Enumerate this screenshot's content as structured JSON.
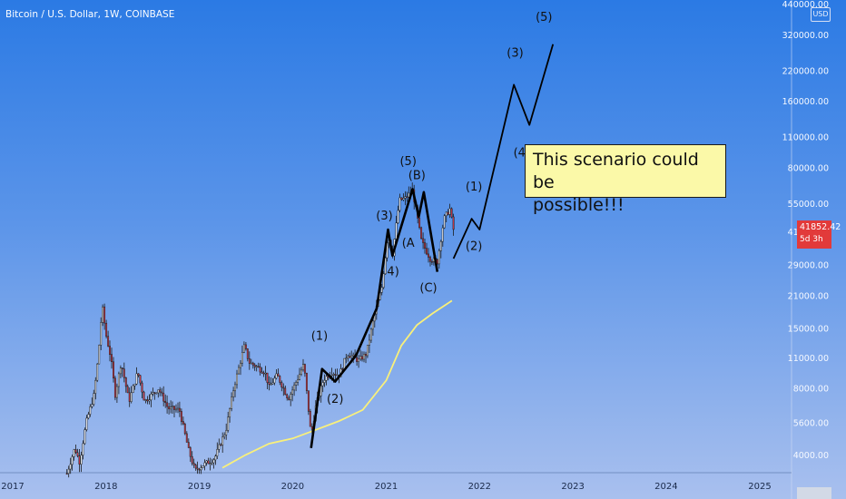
{
  "chart_data": {
    "type": "candlestick",
    "title": "Bitcoin / U.S. Dollar, 1W, COINBASE",
    "currency": "USD",
    "x_axis": {
      "tick_labels": [
        "2017",
        "2018",
        "2019",
        "2020",
        "2021",
        "2022",
        "2023",
        "2024",
        "2025"
      ],
      "range": [
        "2017-01-01",
        "2025-07-01"
      ]
    },
    "y_axis": {
      "scale": "log",
      "position": "right",
      "tick_values": [
        4000,
        5600,
        8000,
        11000,
        15000,
        21000,
        29000,
        41000,
        55000,
        80000,
        110000,
        160000,
        220000,
        320000,
        440000
      ],
      "tick_labels": [
        "4000.00",
        "5600.00",
        "8000.00",
        "11000.00",
        "15000.00",
        "21000.00",
        "29000.00",
        "41000.00",
        "55000.00",
        "80000.00",
        "110000.00",
        "160000.00",
        "220000.00",
        "320000.00",
        "440000.00"
      ],
      "range": [
        3420,
        460000
      ]
    },
    "last_price": {
      "value": "41852.42",
      "time_to_close": "5d 3h"
    },
    "price_path": {
      "name": "BTCUSD weekly (approximate close path)",
      "points": [
        [
          "2017-08-01",
          3300
        ],
        [
          "2017-09-01",
          4300
        ],
        [
          "2017-09-20",
          3700
        ],
        [
          "2017-10-15",
          5600
        ],
        [
          "2017-11-15",
          7500
        ],
        [
          "2017-12-01",
          11000
        ],
        [
          "2017-12-17",
          19000
        ],
        [
          "2018-01-01",
          14000
        ],
        [
          "2018-01-20",
          11000
        ],
        [
          "2018-02-06",
          7500
        ],
        [
          "2018-03-01",
          10500
        ],
        [
          "2018-04-01",
          7000
        ],
        [
          "2018-05-05",
          9500
        ],
        [
          "2018-06-01",
          7000
        ],
        [
          "2018-07-25",
          8000
        ],
        [
          "2018-09-01",
          6500
        ],
        [
          "2018-10-15",
          6400
        ],
        [
          "2018-11-20",
          4200
        ],
        [
          "2018-12-15",
          3400
        ],
        [
          "2019-01-15",
          3600
        ],
        [
          "2019-03-01",
          3850
        ],
        [
          "2019-04-15",
          5200
        ],
        [
          "2019-05-15",
          8000
        ],
        [
          "2019-06-26",
          12500
        ],
        [
          "2019-07-15",
          10500
        ],
        [
          "2019-08-15",
          10000
        ],
        [
          "2019-09-15",
          9500
        ],
        [
          "2019-10-01",
          8100
        ],
        [
          "2019-11-01",
          9200
        ],
        [
          "2019-12-15",
          7200
        ],
        [
          "2020-01-15",
          8600
        ],
        [
          "2020-02-14",
          10300
        ],
        [
          "2020-03-13",
          4900
        ],
        [
          "2020-04-01",
          6700
        ],
        [
          "2020-05-01",
          8800
        ],
        [
          "2020-06-01",
          9500
        ],
        [
          "2020-07-01",
          9200
        ],
        [
          "2020-08-01",
          11500
        ],
        [
          "2020-09-15",
          10700
        ],
        [
          "2020-10-15",
          11500
        ],
        [
          "2020-11-15",
          17000
        ],
        [
          "2020-12-15",
          23000
        ],
        [
          "2021-01-08",
          40000
        ],
        [
          "2021-01-25",
          32000
        ],
        [
          "2021-02-21",
          57000
        ],
        [
          "2021-03-15",
          58000
        ],
        [
          "2021-04-14",
          63000
        ],
        [
          "2021-05-19",
          37000
        ],
        [
          "2021-06-22",
          31000
        ],
        [
          "2021-07-20",
          30000
        ],
        [
          "2021-08-15",
          47000
        ],
        [
          "2021-09-07",
          52000
        ],
        [
          "2021-09-21",
          42000
        ]
      ]
    },
    "moving_average": {
      "color": "#f9f07a",
      "points": [
        [
          "2019-04-01",
          3500
        ],
        [
          "2019-07-01",
          4000
        ],
        [
          "2019-10-01",
          4500
        ],
        [
          "2020-01-01",
          4750
        ],
        [
          "2020-04-01",
          5200
        ],
        [
          "2020-07-01",
          5700
        ],
        [
          "2020-10-01",
          6400
        ],
        [
          "2021-01-01",
          8700
        ],
        [
          "2021-03-01",
          12500
        ],
        [
          "2021-05-01",
          15500
        ],
        [
          "2021-07-01",
          17500
        ],
        [
          "2021-09-15",
          20000
        ]
      ]
    },
    "wave_path": {
      "color": "#000000",
      "historical": [
        [
          "2020-03-13",
          4300
        ],
        [
          "2020-04-25",
          9800
        ],
        [
          "2020-06-15",
          8600
        ],
        [
          "2020-09-05",
          11300
        ],
        [
          "2020-11-25",
          18500
        ],
        [
          "2021-01-08",
          42000
        ],
        [
          "2021-01-25",
          32000
        ],
        [
          "2021-04-14",
          64000
        ],
        [
          "2021-05-08",
          48000
        ],
        [
          "2021-05-28",
          62000
        ],
        [
          "2021-07-20",
          27000
        ]
      ],
      "projection": [
        [
          "2021-09-21",
          31000
        ],
        [
          "2021-12-01",
          47000
        ],
        [
          "2022-01-01",
          42000
        ],
        [
          "2022-05-15",
          190000
        ],
        [
          "2022-07-15",
          125000
        ],
        [
          "2022-10-15",
          290000
        ]
      ]
    },
    "wave_labels": [
      {
        "label": "(1)",
        "date": "2020-04-15",
        "price": 13300
      },
      {
        "label": "(2)",
        "date": "2020-06-15",
        "price": 6900
      },
      {
        "label": "(3)",
        "date": "2020-12-25",
        "price": 46500
      },
      {
        "label": "4)",
        "date": "2021-01-28",
        "price": 26000
      },
      {
        "label": "(5)",
        "date": "2021-03-28",
        "price": 82000
      },
      {
        "label": "(B)",
        "date": "2021-05-01",
        "price": 71000
      },
      {
        "label": "(A",
        "date": "2021-03-28",
        "price": 35000
      },
      {
        "label": "(C)",
        "date": "2021-06-15",
        "price": 22000
      },
      {
        "label": "(1)",
        "date": "2021-12-10",
        "price": 63000
      },
      {
        "label": "(2)",
        "date": "2021-12-10",
        "price": 34000
      },
      {
        "label": "(3)",
        "date": "2022-05-20",
        "price": 255000
      },
      {
        "label": "(4)",
        "date": "2022-06-15",
        "price": 90000
      },
      {
        "label": "(5)",
        "date": "2022-09-10",
        "price": 370000
      }
    ],
    "annotation": {
      "text": [
        "This scenario could be",
        "possible!!!"
      ]
    }
  }
}
